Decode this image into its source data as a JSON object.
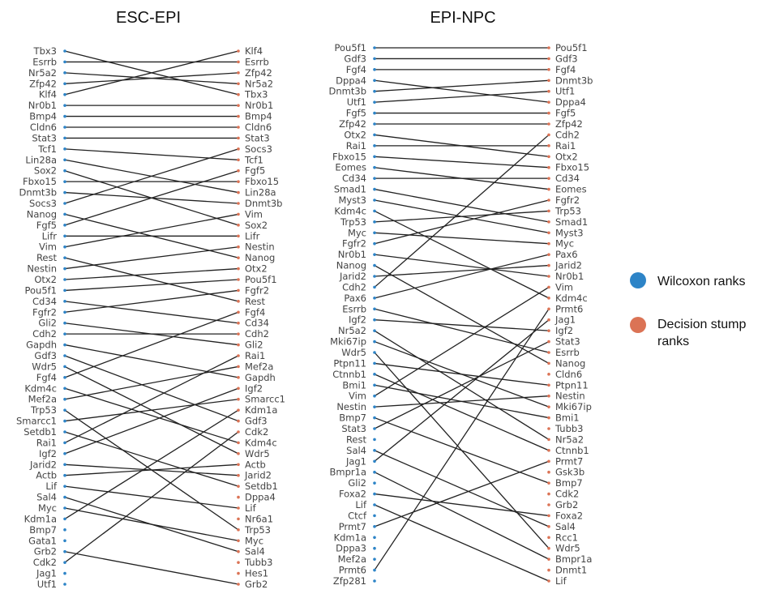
{
  "legend": {
    "items": [
      {
        "label": "Wilcoxon ranks",
        "color": "#2d84c7"
      },
      {
        "label": "Decision stump",
        "label2": "ranks",
        "color": "#db7355"
      }
    ]
  },
  "chart_data": [
    {
      "type": "slope",
      "title": "ESC-EPI",
      "left_label": "Wilcoxon ranks",
      "right_label": "Decision stump ranks",
      "left": [
        "Tbx3",
        "Esrrb",
        "Nr5a2",
        "Zfp42",
        "Klf4",
        "Nr0b1",
        "Bmp4",
        "Cldn6",
        "Stat3",
        "Tcf1",
        "Lin28a",
        "Sox2",
        "Fbxo15",
        "Dnmt3b",
        "Socs3",
        "Nanog",
        "Fgf5",
        "Lifr",
        "Vim",
        "Rest",
        "Nestin",
        "Otx2",
        "Pou5f1",
        "Cd34",
        "Fgfr2",
        "Gli2",
        "Cdh2",
        "Gapdh",
        "Gdf3",
        "Wdr5",
        "Fgf4",
        "Kdm4c",
        "Mef2a",
        "Trp53",
        "Smarcc1",
        "Setdb1",
        "Rai1",
        "Igf2",
        "Jarid2",
        "Actb",
        "Lif",
        "Sal4",
        "Myc",
        "Kdm1a",
        "Bmp7",
        "Gata1",
        "Grb2",
        "Cdk2",
        "Jag1",
        "Utf1"
      ],
      "right": [
        "Klf4",
        "Esrrb",
        "Zfp42",
        "Nr5a2",
        "Tbx3",
        "Nr0b1",
        "Bmp4",
        "Cldn6",
        "Stat3",
        "Socs3",
        "Tcf1",
        "Fgf5",
        "Fbxo15",
        "Lin28a",
        "Dnmt3b",
        "Vim",
        "Sox2",
        "Lifr",
        "Nestin",
        "Nanog",
        "Otx2",
        "Pou5f1",
        "Fgfr2",
        "Rest",
        "Fgf4",
        "Cd34",
        "Cdh2",
        "Gli2",
        "Rai1",
        "Mef2a",
        "Gapdh",
        "Igf2",
        "Smarcc1",
        "Kdm1a",
        "Gdf3",
        "Cdk2",
        "Kdm4c",
        "Wdr5",
        "Actb",
        "Jarid2",
        "Setdb1",
        "Dppa4",
        "Lif",
        "Nr6a1",
        "Trp53",
        "Myc",
        "Sal4",
        "Tubb3",
        "Hes1",
        "Grb2"
      ]
    },
    {
      "type": "slope",
      "title": "EPI-NPC",
      "left_label": "Wilcoxon ranks",
      "right_label": "Decision stump ranks",
      "left": [
        "Pou5f1",
        "Gdf3",
        "Fgf4",
        "Dppa4",
        "Dnmt3b",
        "Utf1",
        "Fgf5",
        "Zfp42",
        "Otx2",
        "Rai1",
        "Fbxo15",
        "Eomes",
        "Cd34",
        "Smad1",
        "Myst3",
        "Kdm4c",
        "Trp53",
        "Myc",
        "Fgfr2",
        "Nr0b1",
        "Nanog",
        "Jarid2",
        "Cdh2",
        "Pax6",
        "Esrrb",
        "Igf2",
        "Nr5a2",
        "Mki67ip",
        "Wdr5",
        "Ptpn11",
        "Ctnnb1",
        "Bmi1",
        "Vim",
        "Nestin",
        "Bmp7",
        "Stat3",
        "Rest",
        "Sal4",
        "Jag1",
        "Bmpr1a",
        "Gli2",
        "Foxa2",
        "Lif",
        "Ctcf",
        "Prmt7",
        "Kdm1a",
        "Dppa3",
        "Mef2a",
        "Prmt6",
        "Zfp281"
      ],
      "right": [
        "Pou5f1",
        "Gdf3",
        "Fgf4",
        "Dnmt3b",
        "Utf1",
        "Dppa4",
        "Fgf5",
        "Zfp42",
        "Cdh2",
        "Rai1",
        "Otx2",
        "Fbxo15",
        "Cd34",
        "Eomes",
        "Fgfr2",
        "Trp53",
        "Smad1",
        "Myst3",
        "Myc",
        "Pax6",
        "Jarid2",
        "Nr0b1",
        "Vim",
        "Kdm4c",
        "Prmt6",
        "Jag1",
        "Igf2",
        "Stat3",
        "Esrrb",
        "Nanog",
        "Cldn6",
        "Ptpn11",
        "Nestin",
        "Mki67ip",
        "Bmi1",
        "Tubb3",
        "Nr5a2",
        "Ctnnb1",
        "Prmt7",
        "Gsk3b",
        "Bmp7",
        "Cdk2",
        "Grb2",
        "Foxa2",
        "Sal4",
        "Rcc1",
        "Wdr5",
        "Bmpr1a",
        "Dnmt1",
        "Lif"
      ]
    }
  ]
}
